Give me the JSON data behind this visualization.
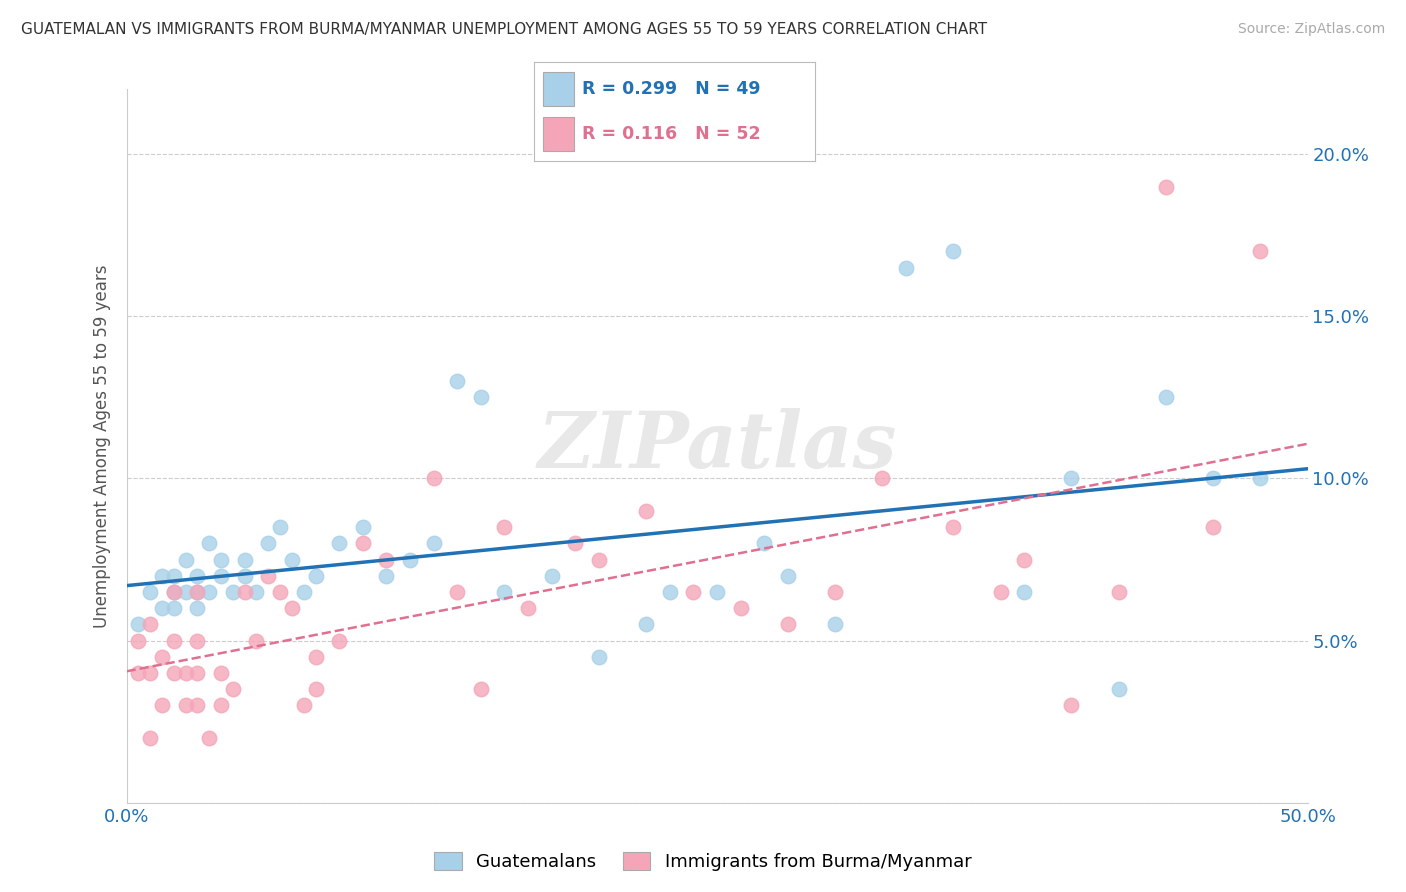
{
  "title": "GUATEMALAN VS IMMIGRANTS FROM BURMA/MYANMAR UNEMPLOYMENT AMONG AGES 55 TO 59 YEARS CORRELATION CHART",
  "source": "Source: ZipAtlas.com",
  "ylabel": "Unemployment Among Ages 55 to 59 years",
  "xlim": [
    0.0,
    0.5
  ],
  "ylim": [
    0.0,
    0.22
  ],
  "xticks": [
    0.0,
    0.05,
    0.1,
    0.15,
    0.2,
    0.25,
    0.3,
    0.35,
    0.4,
    0.45,
    0.5
  ],
  "yticks": [
    0.0,
    0.05,
    0.1,
    0.15,
    0.2
  ],
  "legend1_label": "Guatemalans",
  "legend2_label": "Immigrants from Burma/Myanmar",
  "r1": 0.299,
  "n1": 49,
  "r2": 0.116,
  "n2": 52,
  "color1": "#a8d0e8",
  "color2": "#f4a6b8",
  "line1_color": "#2171b5",
  "line2_color": "#e07090",
  "watermark": "ZIPatlas",
  "background_color": "#ffffff",
  "grid_color": "#cccccc",
  "guatemalan_x": [
    0.005,
    0.01,
    0.015,
    0.015,
    0.02,
    0.02,
    0.02,
    0.025,
    0.025,
    0.03,
    0.03,
    0.03,
    0.035,
    0.035,
    0.04,
    0.04,
    0.045,
    0.05,
    0.05,
    0.055,
    0.06,
    0.065,
    0.07,
    0.075,
    0.08,
    0.09,
    0.1,
    0.11,
    0.12,
    0.13,
    0.14,
    0.15,
    0.16,
    0.18,
    0.2,
    0.22,
    0.23,
    0.25,
    0.27,
    0.28,
    0.3,
    0.33,
    0.35,
    0.38,
    0.4,
    0.42,
    0.44,
    0.46,
    0.48
  ],
  "guatemalan_y": [
    0.055,
    0.065,
    0.06,
    0.07,
    0.06,
    0.065,
    0.07,
    0.065,
    0.075,
    0.06,
    0.065,
    0.07,
    0.065,
    0.08,
    0.07,
    0.075,
    0.065,
    0.07,
    0.075,
    0.065,
    0.08,
    0.085,
    0.075,
    0.065,
    0.07,
    0.08,
    0.085,
    0.07,
    0.075,
    0.08,
    0.13,
    0.125,
    0.065,
    0.07,
    0.045,
    0.055,
    0.065,
    0.065,
    0.08,
    0.07,
    0.055,
    0.165,
    0.17,
    0.065,
    0.1,
    0.035,
    0.125,
    0.1,
    0.1
  ],
  "burma_x": [
    0.005,
    0.005,
    0.01,
    0.01,
    0.01,
    0.015,
    0.015,
    0.02,
    0.02,
    0.02,
    0.025,
    0.025,
    0.03,
    0.03,
    0.03,
    0.03,
    0.035,
    0.04,
    0.04,
    0.045,
    0.05,
    0.055,
    0.06,
    0.065,
    0.07,
    0.075,
    0.08,
    0.08,
    0.09,
    0.1,
    0.11,
    0.13,
    0.14,
    0.15,
    0.16,
    0.17,
    0.19,
    0.2,
    0.22,
    0.24,
    0.26,
    0.28,
    0.3,
    0.32,
    0.35,
    0.37,
    0.38,
    0.4,
    0.42,
    0.44,
    0.46,
    0.48
  ],
  "burma_y": [
    0.05,
    0.04,
    0.04,
    0.02,
    0.055,
    0.045,
    0.03,
    0.04,
    0.05,
    0.065,
    0.03,
    0.04,
    0.05,
    0.03,
    0.04,
    0.065,
    0.02,
    0.03,
    0.04,
    0.035,
    0.065,
    0.05,
    0.07,
    0.065,
    0.06,
    0.03,
    0.035,
    0.045,
    0.05,
    0.08,
    0.075,
    0.1,
    0.065,
    0.035,
    0.085,
    0.06,
    0.08,
    0.075,
    0.09,
    0.065,
    0.06,
    0.055,
    0.065,
    0.1,
    0.085,
    0.065,
    0.075,
    0.03,
    0.065,
    0.19,
    0.085,
    0.17
  ]
}
